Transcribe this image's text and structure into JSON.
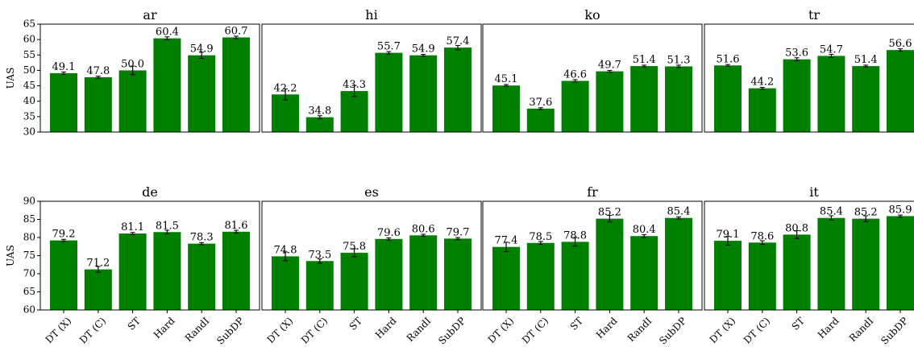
{
  "colors": {
    "bar": "#008000",
    "errorbar": "#000000",
    "frame": "#000000"
  },
  "chart_data": [
    {
      "type": "bar",
      "title": "ar",
      "ylabel": "UAS",
      "ylim": [
        30,
        65
      ],
      "yticks": [
        30,
        35,
        40,
        45,
        50,
        55,
        60,
        65
      ],
      "categories": [
        "DT (X)",
        "DT (C)",
        "ST",
        "Hard",
        "RandI",
        "SubDP"
      ],
      "values": [
        49.1,
        47.8,
        50.0,
        60.4,
        54.9,
        60.7
      ],
      "labels": [
        "49.1",
        "47.8",
        "50.0",
        "60.4",
        "54.9",
        "60.7"
      ],
      "errors": [
        0.4,
        0.3,
        1.4,
        0.5,
        1.0,
        0.4
      ],
      "show_xticks": false,
      "show_yticks": true
    },
    {
      "type": "bar",
      "title": "hi",
      "ylabel": "",
      "ylim": [
        30,
        65
      ],
      "categories": [
        "DT (X)",
        "DT (C)",
        "ST",
        "Hard",
        "RandI",
        "SubDP"
      ],
      "values": [
        42.2,
        34.8,
        43.3,
        55.7,
        54.9,
        57.4
      ],
      "labels": [
        "42.2",
        "34.8",
        "43.3",
        "55.7",
        "54.9",
        "57.4"
      ],
      "errors": [
        1.8,
        0.5,
        1.8,
        0.4,
        0.3,
        0.7
      ],
      "show_xticks": false,
      "show_yticks": false
    },
    {
      "type": "bar",
      "title": "ko",
      "ylabel": "",
      "ylim": [
        30,
        65
      ],
      "categories": [
        "DT (X)",
        "DT (C)",
        "ST",
        "Hard",
        "RandI",
        "SubDP"
      ],
      "values": [
        45.1,
        37.6,
        46.6,
        49.7,
        51.4,
        51.3
      ],
      "labels": [
        "45.1",
        "37.6",
        "46.6",
        "49.7",
        "51.4",
        "51.3"
      ],
      "errors": [
        0.3,
        0.3,
        0.4,
        0.3,
        0.3,
        0.4
      ],
      "show_xticks": false,
      "show_yticks": false
    },
    {
      "type": "bar",
      "title": "tr",
      "ylabel": "",
      "ylim": [
        30,
        65
      ],
      "categories": [
        "DT (X)",
        "DT (C)",
        "ST",
        "Hard",
        "RandI",
        "SubDP"
      ],
      "values": [
        51.6,
        44.2,
        53.6,
        54.7,
        51.4,
        56.6
      ],
      "labels": [
        "51.6",
        "44.2",
        "53.6",
        "54.7",
        "51.4",
        "56.6"
      ],
      "errors": [
        0.3,
        0.3,
        0.5,
        0.5,
        0.3,
        0.4
      ],
      "show_xticks": false,
      "show_yticks": false
    },
    {
      "type": "bar",
      "title": "de",
      "ylabel": "UAS",
      "ylim": [
        60,
        90
      ],
      "yticks": [
        60,
        65,
        70,
        75,
        80,
        85,
        90
      ],
      "categories": [
        "DT (X)",
        "DT (C)",
        "ST",
        "Hard",
        "RandI",
        "SubDP"
      ],
      "values": [
        79.2,
        71.2,
        81.1,
        81.5,
        78.3,
        81.6
      ],
      "labels": [
        "79.2",
        "71.2",
        "81.1",
        "81.5",
        "78.3",
        "81.6"
      ],
      "errors": [
        0.3,
        0.8,
        0.3,
        0.5,
        0.3,
        0.4
      ],
      "show_xticks": true,
      "show_yticks": true
    },
    {
      "type": "bar",
      "title": "es",
      "ylabel": "",
      "ylim": [
        60,
        90
      ],
      "categories": [
        "DT (X)",
        "DT (C)",
        "ST",
        "Hard",
        "RandI",
        "SubDP"
      ],
      "values": [
        74.8,
        73.5,
        75.8,
        79.6,
        80.6,
        79.7
      ],
      "labels": [
        "74.8",
        "73.5",
        "75.8",
        "79.6",
        "80.6",
        "79.7"
      ],
      "errors": [
        1.2,
        0.6,
        1.1,
        0.3,
        0.3,
        0.3
      ],
      "show_xticks": true,
      "show_yticks": false
    },
    {
      "type": "bar",
      "title": "fr",
      "ylabel": "",
      "ylim": [
        60,
        90
      ],
      "categories": [
        "DT (X)",
        "DT (C)",
        "ST",
        "Hard",
        "RandI",
        "SubDP"
      ],
      "values": [
        77.4,
        78.5,
        78.8,
        85.2,
        80.4,
        85.4
      ],
      "labels": [
        "77.4",
        "78.5",
        "78.8",
        "85.2",
        "80.4",
        "85.4"
      ],
      "errors": [
        1.3,
        0.4,
        1.2,
        0.9,
        0.4,
        0.3
      ],
      "show_xticks": true,
      "show_yticks": false
    },
    {
      "type": "bar",
      "title": "it",
      "ylabel": "",
      "ylim": [
        60,
        90
      ],
      "categories": [
        "DT (X)",
        "DT (C)",
        "ST",
        "Hard",
        "RandI",
        "SubDP"
      ],
      "values": [
        79.1,
        78.6,
        80.8,
        85.4,
        85.2,
        85.9
      ],
      "labels": [
        "79.1",
        "78.6",
        "80.8",
        "85.4",
        "85.2",
        "85.9"
      ],
      "errors": [
        1.2,
        0.5,
        1.1,
        0.6,
        0.8,
        0.3
      ],
      "show_xticks": true,
      "show_yticks": false
    }
  ]
}
